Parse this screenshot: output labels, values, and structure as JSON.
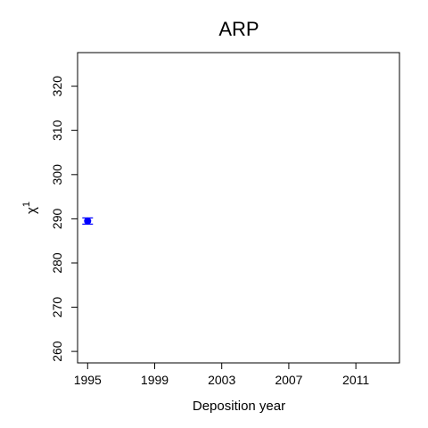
{
  "chart_data": {
    "type": "scatter",
    "title": "ARP",
    "xlabel": "Deposition year",
    "ylabel": "χ",
    "ylabel_superscript": "1",
    "xlim": [
      1994.4,
      2013.6
    ],
    "ylim": [
      257.4,
      327.6
    ],
    "x_ticks": [
      1995,
      1999,
      2003,
      2007,
      2011
    ],
    "y_ticks": [
      260,
      270,
      280,
      290,
      300,
      310,
      320
    ],
    "grid": false,
    "series": [
      {
        "color": "#0000ff",
        "points": [
          {
            "x": 1995,
            "y": 289.5,
            "err_low": 288.8,
            "err_high": 290.2
          }
        ]
      }
    ]
  }
}
